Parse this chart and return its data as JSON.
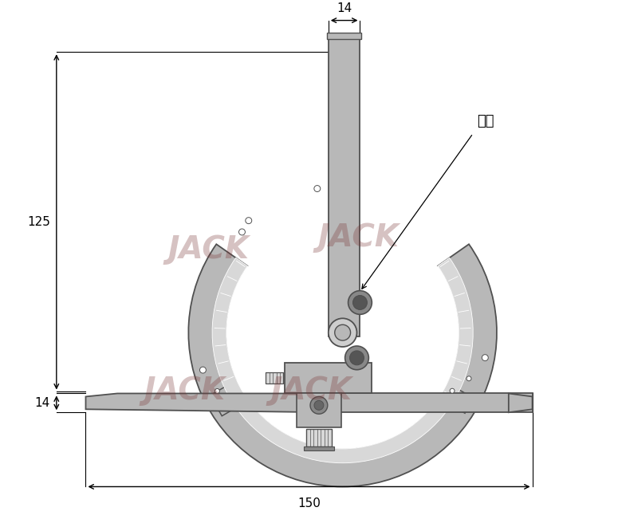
{
  "bg_color": "#ffffff",
  "tc": "#b8b8b8",
  "tc_dark": "#888888",
  "tc_light": "#cecece",
  "tc_lighter": "#d8d8d8",
  "oc": "#505050",
  "dc": "#000000",
  "wm_color": "#7a3535",
  "label_14t": "14",
  "label_14s": "14",
  "label_125": "125",
  "label_150": "150",
  "label_weidiao": "微调",
  "wm_text": "JACK"
}
